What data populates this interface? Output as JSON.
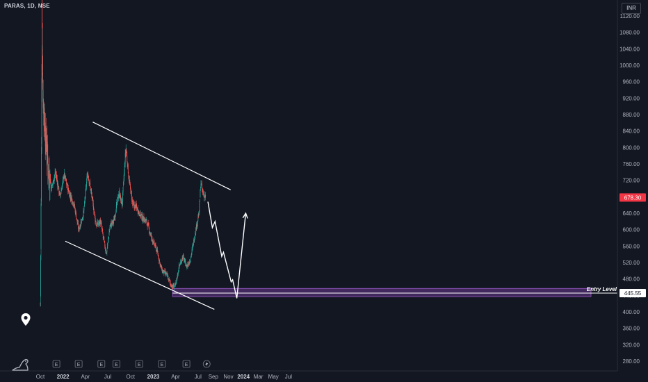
{
  "header": {
    "symbol": "PARAS, 1D, NSE",
    "currency": "INR"
  },
  "chart_data": {
    "type": "candlestick",
    "symbol": "PARAS",
    "interval": "1D",
    "exchange": "NSE",
    "currency": "INR",
    "y_ticks": [
      280,
      320,
      360,
      400,
      440,
      480,
      520,
      560,
      600,
      640,
      680,
      720,
      760,
      800,
      840,
      880,
      920,
      960,
      1000,
      1040,
      1080,
      1120
    ],
    "ylim": [
      262,
      1140
    ],
    "x_ticks": [
      {
        "label": "Oct",
        "bold": false
      },
      {
        "label": "2022",
        "bold": true
      },
      {
        "label": "Apr",
        "bold": false
      },
      {
        "label": "Jul",
        "bold": false
      },
      {
        "label": "Oct",
        "bold": false
      },
      {
        "label": "2023",
        "bold": true
      },
      {
        "label": "Apr",
        "bold": false
      },
      {
        "label": "Jul",
        "bold": false
      },
      {
        "label": "Sep",
        "bold": false
      },
      {
        "label": "Nov",
        "bold": false
      },
      {
        "label": "2024",
        "bold": true
      },
      {
        "label": "Mar",
        "bold": false
      },
      {
        "label": "May",
        "bold": false
      },
      {
        "label": "Jul",
        "bold": false
      }
    ],
    "last_price": "678.30",
    "entry_price": "445.55",
    "entry_label": "Entry Level",
    "entry_zone": [
      437,
      457
    ],
    "price_path": [
      [
        "2021-10-01",
        420
      ],
      [
        "2021-10-05",
        750
      ],
      [
        "2021-10-08",
        1090
      ],
      [
        "2021-10-12",
        930
      ],
      [
        "2021-10-18",
        860
      ],
      [
        "2021-11-01",
        760
      ],
      [
        "2021-11-15",
        700
      ],
      [
        "2021-12-01",
        740
      ],
      [
        "2021-12-20",
        680
      ],
      [
        "2022-01-05",
        735
      ],
      [
        "2022-01-25",
        690
      ],
      [
        "2022-02-15",
        660
      ],
      [
        "2022-03-05",
        600
      ],
      [
        "2022-03-25",
        640
      ],
      [
        "2022-04-10",
        740
      ],
      [
        "2022-04-25",
        690
      ],
      [
        "2022-05-15",
        610
      ],
      [
        "2022-06-01",
        620
      ],
      [
        "2022-06-25",
        540
      ],
      [
        "2022-07-10",
        610
      ],
      [
        "2022-07-25",
        620
      ],
      [
        "2022-08-15",
        690
      ],
      [
        "2022-08-28",
        660
      ],
      [
        "2022-09-12",
        800
      ],
      [
        "2022-09-25",
        720
      ],
      [
        "2022-10-10",
        660
      ],
      [
        "2022-10-25",
        655
      ],
      [
        "2022-11-15",
        630
      ],
      [
        "2022-12-05",
        620
      ],
      [
        "2022-12-25",
        580
      ],
      [
        "2023-01-15",
        550
      ],
      [
        "2023-02-05",
        500
      ],
      [
        "2023-02-25",
        490
      ],
      [
        "2023-03-10",
        470
      ],
      [
        "2023-03-20",
        460
      ],
      [
        "2023-04-01",
        465
      ],
      [
        "2023-04-15",
        510
      ],
      [
        "2023-05-01",
        535
      ],
      [
        "2023-05-15",
        510
      ],
      [
        "2023-05-30",
        525
      ],
      [
        "2023-06-10",
        560
      ],
      [
        "2023-06-25",
        610
      ],
      [
        "2023-07-05",
        640
      ],
      [
        "2023-07-12",
        715
      ],
      [
        "2023-07-20",
        690
      ],
      [
        "2023-08-01",
        678
      ]
    ],
    "upper_trendline": [
      [
        "2022-05-01",
        862
      ],
      [
        "2023-11-10",
        697
      ]
    ],
    "lower_trendline": [
      [
        "2022-01-10",
        572
      ],
      [
        "2023-09-05",
        406
      ]
    ],
    "projection": [
      [
        "2023-08-10",
        668
      ],
      [
        "2023-08-28",
        605
      ],
      [
        "2023-09-08",
        620
      ],
      [
        "2023-10-05",
        535
      ],
      [
        "2023-10-12",
        545
      ],
      [
        "2023-11-12",
        473
      ],
      [
        "2023-11-18",
        478
      ],
      [
        "2023-12-05",
        433
      ],
      [
        "2024-01-10",
        640
      ]
    ]
  }
}
